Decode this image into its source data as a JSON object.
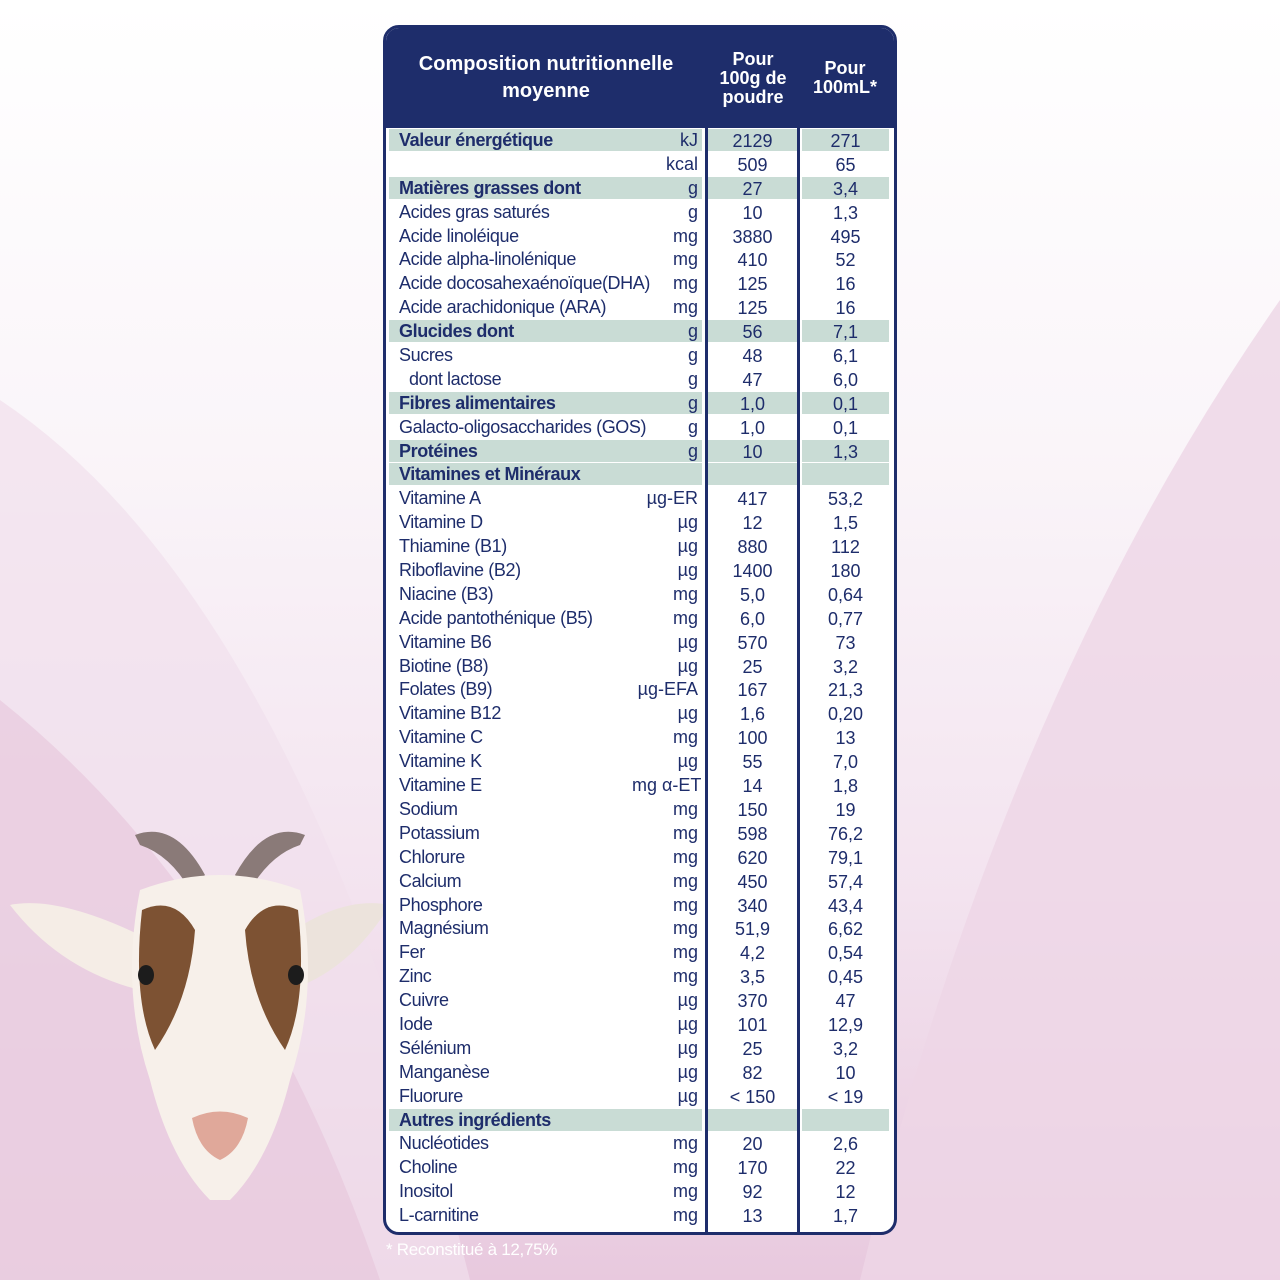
{
  "header": {
    "title": "Composition nutritionnelle\nmoyenne",
    "col1": "Pour\n100g de\npoudre",
    "col2": "Pour\n100mL*"
  },
  "rows": [
    {
      "name": "Valeur énergétique",
      "unit": "kJ",
      "v1": "2129",
      "v2": "271",
      "shade": true,
      "bold": true
    },
    {
      "name": "",
      "unit": "kcal",
      "v1": "509",
      "v2": "65",
      "shade": false,
      "bold": false
    },
    {
      "name": "Matières grasses dont",
      "unit": "g",
      "v1": "27",
      "v2": "3,4",
      "shade": true,
      "bold": true
    },
    {
      "name": "Acides gras saturés",
      "unit": "g",
      "v1": "10",
      "v2": "1,3",
      "shade": false,
      "bold": false
    },
    {
      "name": "Acide linoléique",
      "unit": "mg",
      "v1": "3880",
      "v2": "495",
      "shade": false,
      "bold": false
    },
    {
      "name": "Acide alpha-linolénique",
      "unit": "mg",
      "v1": "410",
      "v2": "52",
      "shade": false,
      "bold": false
    },
    {
      "name": "Acide docosahexaénoïque(DHA)",
      "unit": "mg",
      "v1": "125",
      "v2": "16",
      "shade": false,
      "bold": false
    },
    {
      "name": "Acide arachidonique (ARA)",
      "unit": "mg",
      "v1": "125",
      "v2": "16",
      "shade": false,
      "bold": false
    },
    {
      "name": "Glucides dont",
      "unit": "g",
      "v1": "56",
      "v2": "7,1",
      "shade": true,
      "bold": true
    },
    {
      "name": "Sucres",
      "unit": "g",
      "v1": "48",
      "v2": "6,1",
      "shade": false,
      "bold": false
    },
    {
      "name": "dont lactose",
      "unit": "g",
      "v1": "47",
      "v2": "6,0",
      "shade": false,
      "bold": false,
      "indent": true
    },
    {
      "name": "Fibres alimentaires",
      "unit": "g",
      "v1": "1,0",
      "v2": "0,1",
      "shade": true,
      "bold": true
    },
    {
      "name": "Galacto-oligosaccharides (GOS)",
      "unit": "g",
      "v1": "1,0",
      "v2": "0,1",
      "shade": false,
      "bold": false
    },
    {
      "name": "Protéines",
      "unit": "g",
      "v1": "10",
      "v2": "1,3",
      "shade": true,
      "bold": true
    },
    {
      "name": "Vitamines et Minéraux",
      "unit": "",
      "v1": "",
      "v2": "",
      "shade": true,
      "bold": true
    },
    {
      "name": "Vitamine A",
      "unit": "µg-ER",
      "v1": "417",
      "v2": "53,2",
      "shade": false,
      "bold": false
    },
    {
      "name": "Vitamine D",
      "unit": "µg",
      "v1": "12",
      "v2": "1,5",
      "shade": false,
      "bold": false
    },
    {
      "name": "Thiamine (B1)",
      "unit": "µg",
      "v1": "880",
      "v2": "112",
      "shade": false,
      "bold": false
    },
    {
      "name": "Riboflavine (B2)",
      "unit": "µg",
      "v1": "1400",
      "v2": "180",
      "shade": false,
      "bold": false
    },
    {
      "name": "Niacine (B3)",
      "unit": "mg",
      "v1": "5,0",
      "v2": "0,64",
      "shade": false,
      "bold": false
    },
    {
      "name": "Acide pantothénique (B5)",
      "unit": "mg",
      "v1": "6,0",
      "v2": "0,77",
      "shade": false,
      "bold": false
    },
    {
      "name": "Vitamine B6",
      "unit": "µg",
      "v1": "570",
      "v2": "73",
      "shade": false,
      "bold": false
    },
    {
      "name": "Biotine (B8)",
      "unit": "µg",
      "v1": "25",
      "v2": "3,2",
      "shade": false,
      "bold": false
    },
    {
      "name": "Folates (B9)",
      "unit": "µg-EFA",
      "v1": "167",
      "v2": "21,3",
      "shade": false,
      "bold": false
    },
    {
      "name": "Vitamine B12",
      "unit": "µg",
      "v1": "1,6",
      "v2": "0,20",
      "shade": false,
      "bold": false
    },
    {
      "name": "Vitamine C",
      "unit": "mg",
      "v1": "100",
      "v2": "13",
      "shade": false,
      "bold": false
    },
    {
      "name": "Vitamine K",
      "unit": "µg",
      "v1": "55",
      "v2": "7,0",
      "shade": false,
      "bold": false
    },
    {
      "name": "Vitamine E",
      "unit": "mg α-ET",
      "v1": "14",
      "v2": "1,8",
      "shade": false,
      "bold": false
    },
    {
      "name": "Sodium",
      "unit": "mg",
      "v1": "150",
      "v2": "19",
      "shade": false,
      "bold": false
    },
    {
      "name": "Potassium",
      "unit": "mg",
      "v1": "598",
      "v2": "76,2",
      "shade": false,
      "bold": false
    },
    {
      "name": "Chlorure",
      "unit": "mg",
      "v1": "620",
      "v2": "79,1",
      "shade": false,
      "bold": false
    },
    {
      "name": "Calcium",
      "unit": "mg",
      "v1": "450",
      "v2": "57,4",
      "shade": false,
      "bold": false
    },
    {
      "name": "Phosphore",
      "unit": "mg",
      "v1": "340",
      "v2": "43,4",
      "shade": false,
      "bold": false
    },
    {
      "name": "Magnésium",
      "unit": "mg",
      "v1": "51,9",
      "v2": "6,62",
      "shade": false,
      "bold": false
    },
    {
      "name": "Fer",
      "unit": "mg",
      "v1": "4,2",
      "v2": "0,54",
      "shade": false,
      "bold": false
    },
    {
      "name": "Zinc",
      "unit": "mg",
      "v1": "3,5",
      "v2": "0,45",
      "shade": false,
      "bold": false
    },
    {
      "name": "Cuivre",
      "unit": "µg",
      "v1": "370",
      "v2": "47",
      "shade": false,
      "bold": false
    },
    {
      "name": "Iode",
      "unit": "µg",
      "v1": "101",
      "v2": "12,9",
      "shade": false,
      "bold": false
    },
    {
      "name": "Sélénium",
      "unit": "µg",
      "v1": "25",
      "v2": "3,2",
      "shade": false,
      "bold": false
    },
    {
      "name": "Manganèse",
      "unit": "µg",
      "v1": "82",
      "v2": "10",
      "shade": false,
      "bold": false
    },
    {
      "name": "Fluorure",
      "unit": "µg",
      "v1": "< 150",
      "v2": "< 19",
      "shade": false,
      "bold": false
    },
    {
      "name": "Autres ingrédients",
      "unit": "",
      "v1": "",
      "v2": "",
      "shade": true,
      "bold": true
    },
    {
      "name": "Nucléotides",
      "unit": "mg",
      "v1": "20",
      "v2": "2,6",
      "shade": false,
      "bold": false
    },
    {
      "name": "Choline",
      "unit": "mg",
      "v1": "170",
      "v2": "22",
      "shade": false,
      "bold": false
    },
    {
      "name": "Inositol",
      "unit": "mg",
      "v1": "92",
      "v2": "12",
      "shade": false,
      "bold": false
    },
    {
      "name": "L-carnitine",
      "unit": "mg",
      "v1": "13",
      "v2": "1,7",
      "shade": false,
      "bold": false
    }
  ],
  "footnote": "* Reconstitué à 12,75%",
  "colors": {
    "navy": "#1e2d6b",
    "shade": "#c9dcd5",
    "pink": "#e8c9de"
  },
  "illustration": "goat-illustration"
}
